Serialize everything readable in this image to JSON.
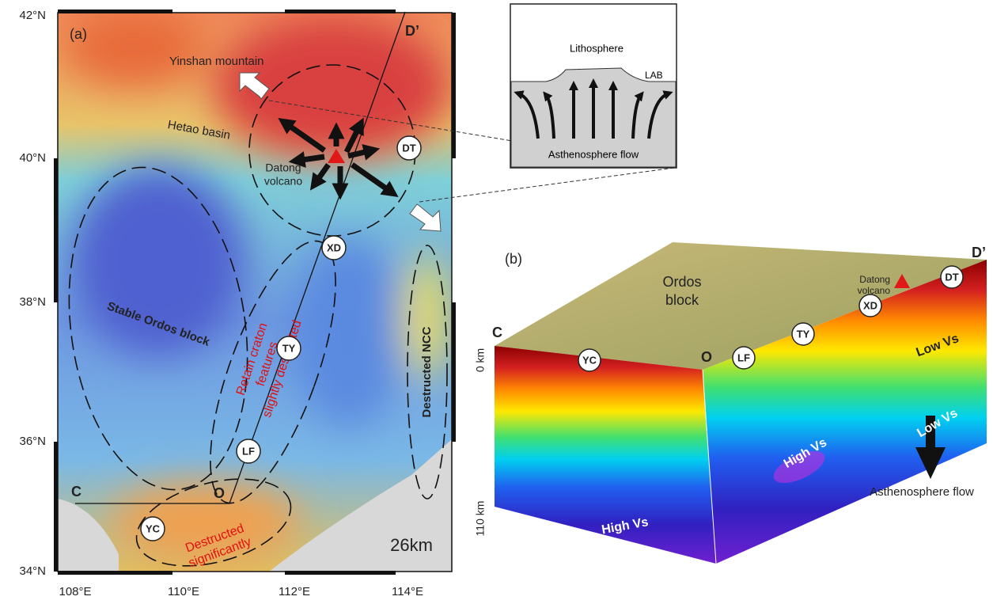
{
  "panel_a": {
    "label": "(a)",
    "lat_labels": [
      "42°N",
      "40°N",
      "38°N",
      "36°N",
      "34°N"
    ],
    "lon_labels": [
      "108°E",
      "110°E",
      "112°E",
      "114°E"
    ],
    "profile": {
      "start": "C",
      "corner": "O",
      "end": "D’"
    },
    "places": {
      "mountain": "Yinshan mountain",
      "basin": "Hetao basin",
      "volcano": [
        "Datong",
        "volcano"
      ]
    },
    "stations": [
      "DT",
      "XD",
      "TY",
      "LF",
      "YC"
    ],
    "regions": {
      "stable": "Stable Ordos block",
      "retain": [
        "Retain craton",
        "features",
        "slightly destructed"
      ],
      "ncc": "Destructed NCC",
      "significant": [
        "Destructed",
        "significantly"
      ]
    },
    "depth": "26km"
  },
  "inset": {
    "top": "Lithosphere",
    "boundary": "LAB",
    "bottom": "Asthenosphere flow"
  },
  "panel_b": {
    "label": "(b)",
    "profile": {
      "start": "C",
      "corner": "O",
      "end": "D’"
    },
    "block": [
      "Ordos",
      "block"
    ],
    "volcano": [
      "Datong",
      "volcano"
    ],
    "stations": [
      "DT",
      "XD",
      "TY",
      "LF",
      "YC"
    ],
    "depths": [
      "0 km",
      "110 km"
    ],
    "low_vs": [
      "Low Vs",
      "Low Vs"
    ],
    "high_vs": [
      "High Vs",
      "High Vs"
    ],
    "flow": "Asthenosphere flow"
  }
}
